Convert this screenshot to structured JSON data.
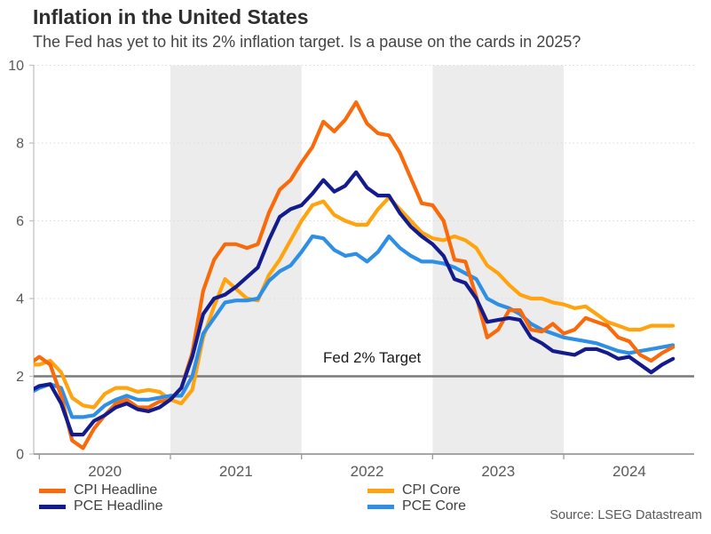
{
  "chart_data": {
    "type": "line",
    "title": "Inflation in the United States",
    "subtitle": "The Fed has yet to hit its 2% inflation target. Is a pause on the cards in 2025?",
    "source": "Source: LSEG Datastream",
    "ylim": [
      0,
      10
    ],
    "yticks": [
      0,
      2,
      4,
      6,
      8,
      10
    ],
    "xticks": [
      "2020",
      "2021",
      "2022",
      "2023",
      "2024"
    ],
    "shaded_years": [
      "2021",
      "2023"
    ],
    "shade_color": "#ECECEC",
    "grid_color": "#DBDBDB",
    "y_axis_color": "#C4C4C4",
    "x_axis_color": "#9A9A9A",
    "tick_text_color": "#595959",
    "legend_position": "bottom",
    "target_line": {
      "value": 2,
      "label": "Fed 2% Target",
      "color": "#7A7A7A"
    },
    "categories": [
      "2019-12",
      "2020-01",
      "2020-02",
      "2020-03",
      "2020-04",
      "2020-05",
      "2020-06",
      "2020-07",
      "2020-08",
      "2020-09",
      "2020-10",
      "2020-11",
      "2020-12",
      "2021-01",
      "2021-02",
      "2021-03",
      "2021-04",
      "2021-05",
      "2021-06",
      "2021-07",
      "2021-08",
      "2021-09",
      "2021-10",
      "2021-11",
      "2021-12",
      "2022-01",
      "2022-02",
      "2022-03",
      "2022-04",
      "2022-05",
      "2022-06",
      "2022-07",
      "2022-08",
      "2022-09",
      "2022-10",
      "2022-11",
      "2022-12",
      "2023-01",
      "2023-02",
      "2023-03",
      "2023-04",
      "2023-05",
      "2023-06",
      "2023-07",
      "2023-08",
      "2023-09",
      "2023-10",
      "2023-11",
      "2023-12",
      "2024-01",
      "2024-02",
      "2024-03",
      "2024-04",
      "2024-05",
      "2024-06",
      "2024-07",
      "2024-08",
      "2024-09",
      "2024-10",
      "2024-11"
    ],
    "series": [
      {
        "name": "CPI Headline",
        "color": "#F96A0B",
        "values": [
          2.3,
          2.5,
          2.3,
          1.5,
          0.35,
          0.15,
          0.65,
          1.0,
          1.3,
          1.4,
          1.2,
          1.2,
          1.35,
          1.4,
          1.7,
          2.6,
          4.2,
          5.0,
          5.4,
          5.4,
          5.3,
          5.4,
          6.2,
          6.8,
          7.05,
          7.5,
          7.9,
          8.55,
          8.3,
          8.6,
          9.05,
          8.5,
          8.25,
          8.2,
          7.75,
          7.1,
          6.45,
          6.4,
          6.0,
          5.0,
          4.95,
          4.05,
          3.0,
          3.2,
          3.7,
          3.7,
          3.2,
          3.15,
          3.35,
          3.1,
          3.2,
          3.5,
          3.4,
          3.3,
          3.0,
          2.9,
          2.55,
          2.4,
          2.6,
          2.75
        ]
      },
      {
        "name": "CPI Core",
        "color": "#FFA30F",
        "values": [
          2.3,
          2.3,
          2.4,
          2.1,
          1.45,
          1.25,
          1.2,
          1.55,
          1.7,
          1.7,
          1.6,
          1.65,
          1.6,
          1.4,
          1.3,
          1.65,
          3.0,
          3.8,
          4.5,
          4.25,
          4.0,
          3.95,
          4.6,
          5.0,
          5.5,
          6.0,
          6.4,
          6.5,
          6.15,
          6.0,
          5.9,
          5.9,
          6.3,
          6.6,
          6.3,
          6.0,
          5.7,
          5.55,
          5.5,
          5.6,
          5.5,
          5.3,
          4.85,
          4.65,
          4.35,
          4.1,
          4.0,
          4.0,
          3.9,
          3.85,
          3.75,
          3.8,
          3.6,
          3.4,
          3.3,
          3.2,
          3.2,
          3.3,
          3.3,
          3.3
        ]
      },
      {
        "name": "PCE Headline",
        "color": "#131B8D",
        "values": [
          1.6,
          1.75,
          1.8,
          1.3,
          0.5,
          0.5,
          0.85,
          1.0,
          1.2,
          1.3,
          1.15,
          1.1,
          1.2,
          1.4,
          1.7,
          2.5,
          3.6,
          4.0,
          4.1,
          4.3,
          4.55,
          4.8,
          5.5,
          6.1,
          6.3,
          6.4,
          6.7,
          7.05,
          6.75,
          6.9,
          7.25,
          6.85,
          6.65,
          6.65,
          6.2,
          5.85,
          5.6,
          5.4,
          5.1,
          4.5,
          4.4,
          4.0,
          3.4,
          3.45,
          3.5,
          3.45,
          3.0,
          2.85,
          2.65,
          2.6,
          2.55,
          2.7,
          2.7,
          2.6,
          2.45,
          2.5,
          2.3,
          2.1,
          2.3,
          2.45
        ]
      },
      {
        "name": "PCE Core",
        "color": "#2E8FE5",
        "values": [
          1.55,
          1.7,
          1.8,
          1.7,
          0.95,
          0.95,
          1.0,
          1.25,
          1.4,
          1.5,
          1.4,
          1.4,
          1.45,
          1.5,
          1.5,
          2.0,
          3.1,
          3.5,
          3.9,
          3.95,
          3.95,
          4.0,
          4.45,
          4.7,
          4.85,
          5.2,
          5.6,
          5.55,
          5.25,
          5.1,
          5.15,
          4.95,
          5.2,
          5.6,
          5.3,
          5.1,
          4.95,
          4.95,
          4.9,
          4.8,
          4.65,
          4.5,
          4.0,
          3.85,
          3.75,
          3.6,
          3.35,
          3.2,
          3.1,
          3.0,
          2.95,
          2.9,
          2.85,
          2.75,
          2.65,
          2.6,
          2.65,
          2.7,
          2.75,
          2.8
        ]
      }
    ],
    "draw_order": [
      1,
      3,
      0,
      2
    ]
  },
  "legend": {
    "rows": [
      {
        "series_index": 0
      },
      {
        "series_index": 2
      },
      {
        "series_index": 1
      },
      {
        "series_index": 3
      }
    ]
  }
}
